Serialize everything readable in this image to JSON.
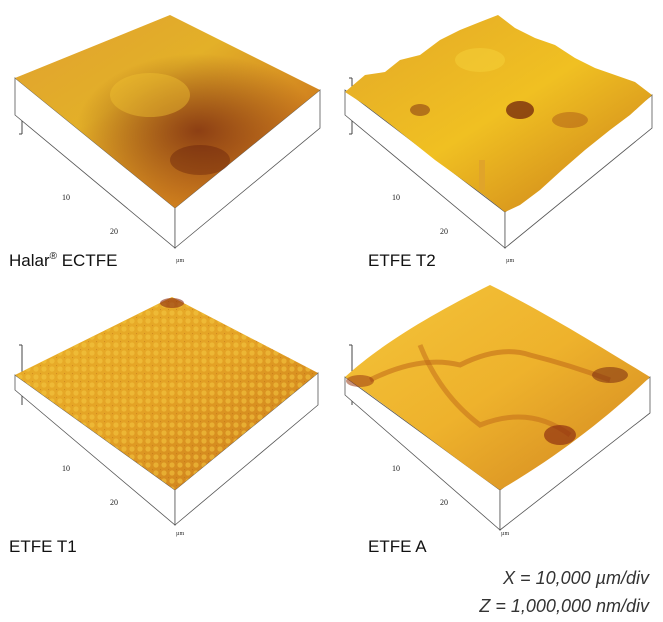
{
  "panels": [
    {
      "label": "Halar",
      "label_sup": "®",
      "label_rest": " ECTFE",
      "ticks": [
        "10",
        "20"
      ],
      "unit": "µm"
    },
    {
      "label": "ETFE T2",
      "ticks": [
        "10",
        "20"
      ],
      "unit": "µm"
    },
    {
      "label": "ETFE T1",
      "ticks": [
        "10",
        "20"
      ],
      "unit": "µm"
    },
    {
      "label": "ETFE A",
      "ticks": [
        "10",
        "20"
      ],
      "unit": "µm"
    }
  ],
  "scale": {
    "x": "X = 10,000 µm/div",
    "z": "Z = 1,000,000 nm/div"
  },
  "colors": {
    "surface_light": "#f2c21a",
    "surface_mid": "#d98a1c",
    "surface_dark": "#7a1d0c"
  }
}
